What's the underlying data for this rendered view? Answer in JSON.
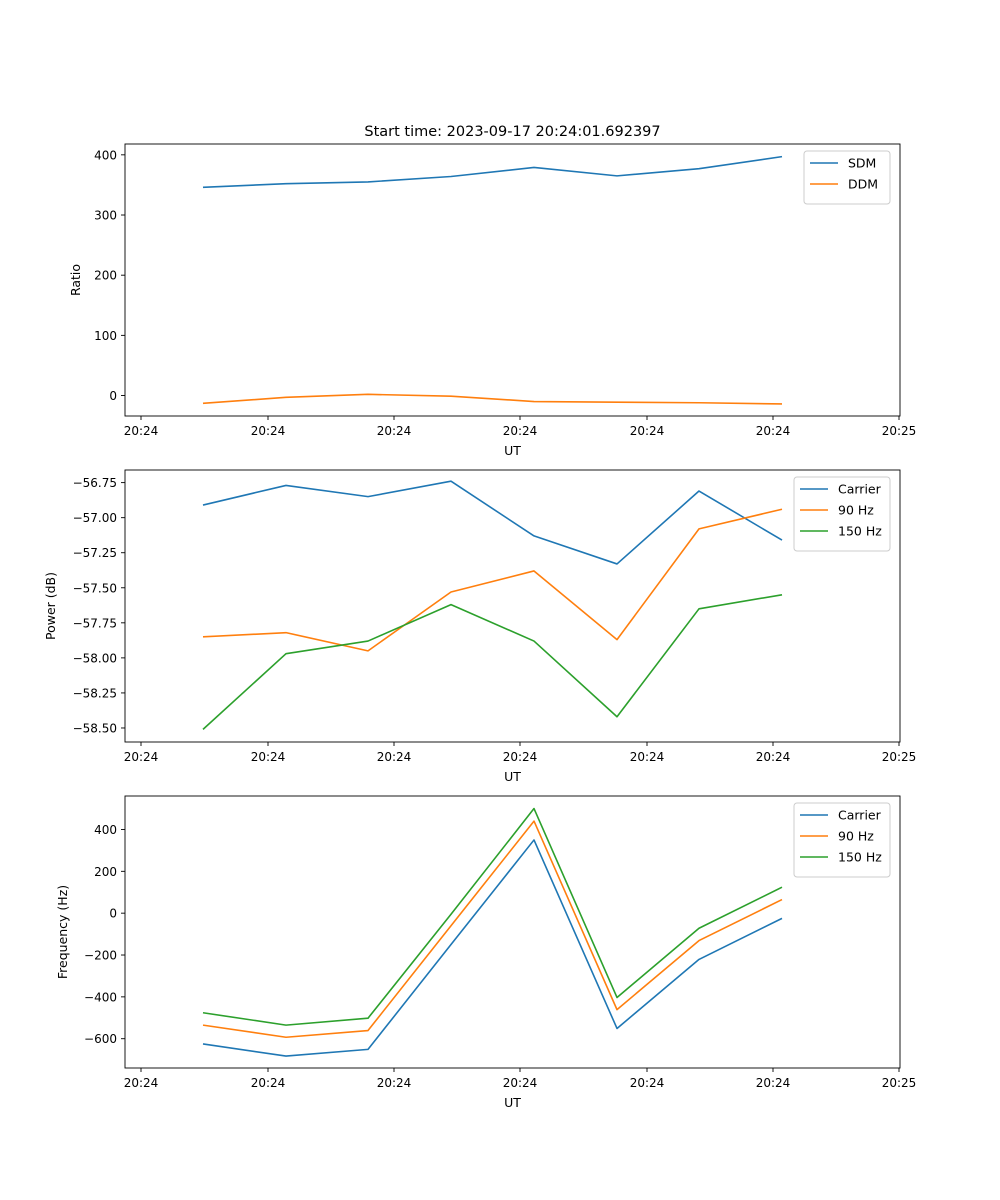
{
  "chart_data": [
    {
      "type": "line",
      "title": "Start time: 2023-09-17 20:24:01.692397",
      "xlabel": "UT",
      "ylabel": "Ratio",
      "x_ticks": [
        "20:24",
        "20:24",
        "20:24",
        "20:24",
        "20:24",
        "20:24",
        "20:25"
      ],
      "xlim": [
        -0.2,
        9.0
      ],
      "ylim": [
        -34,
        418
      ],
      "y_ticks": [
        0,
        100,
        200,
        300,
        400
      ],
      "grid": false,
      "legend": "top-right",
      "x": [
        0,
        1,
        2,
        3,
        4,
        5,
        6,
        7
      ],
      "series": [
        {
          "name": "SDM",
          "color": "#1f77b4",
          "values": [
            346,
            352,
            355,
            364,
            379,
            365,
            377,
            397
          ]
        },
        {
          "name": "DDM",
          "color": "#ff7f0e",
          "values": [
            -13,
            -3,
            2,
            -1,
            -10,
            -11,
            -12,
            -14
          ]
        }
      ]
    },
    {
      "type": "line",
      "title": "",
      "xlabel": "UT",
      "ylabel": "Power (dB)",
      "x_ticks": [
        "20:24",
        "20:24",
        "20:24",
        "20:24",
        "20:24",
        "20:24",
        "20:25"
      ],
      "xlim": [
        -0.2,
        9.0
      ],
      "ylim": [
        -58.6,
        -56.66
      ],
      "y_ticks": [
        -58.5,
        -58.25,
        -58.0,
        -57.75,
        -57.5,
        -57.25,
        -57.0,
        -56.75
      ],
      "grid": false,
      "legend": "top-right",
      "x": [
        0,
        1,
        2,
        3,
        4,
        5,
        6,
        7
      ],
      "series": [
        {
          "name": "Carrier",
          "color": "#1f77b4",
          "values": [
            -56.91,
            -56.77,
            -56.85,
            -56.74,
            -57.13,
            -57.33,
            -56.81,
            -57.16
          ]
        },
        {
          "name": "90 Hz",
          "color": "#ff7f0e",
          "values": [
            -57.85,
            -57.82,
            -57.95,
            -57.53,
            -57.38,
            -57.87,
            -57.08,
            -56.94
          ]
        },
        {
          "name": "150 Hz",
          "color": "#2ca02c",
          "values": [
            -58.51,
            -57.97,
            -57.88,
            -57.62,
            -57.88,
            -58.42,
            -57.65,
            -57.55
          ]
        }
      ]
    },
    {
      "type": "line",
      "title": "",
      "xlabel": "UT",
      "ylabel": "Frequency (Hz)",
      "x_ticks": [
        "20:24",
        "20:24",
        "20:24",
        "20:24",
        "20:24",
        "20:24",
        "20:25"
      ],
      "xlim": [
        -0.2,
        9.0
      ],
      "ylim": [
        -740,
        560
      ],
      "y_ticks": [
        -600,
        -400,
        -200,
        0,
        200,
        400
      ],
      "grid": false,
      "legend": "top-right",
      "x": [
        0,
        1,
        2,
        3,
        4,
        5,
        6,
        7
      ],
      "series": [
        {
          "name": "Carrier",
          "color": "#1f77b4",
          "values": [
            -625,
            -683,
            -651,
            -150,
            350,
            -551,
            -221,
            -25
          ]
        },
        {
          "name": "90 Hz",
          "color": "#ff7f0e",
          "values": [
            -535,
            -593,
            -561,
            -60,
            440,
            -461,
            -131,
            65
          ]
        },
        {
          "name": "150 Hz",
          "color": "#2ca02c",
          "values": [
            -476,
            -535,
            -502,
            -5,
            500,
            -403,
            -72,
            124
          ]
        }
      ]
    }
  ]
}
